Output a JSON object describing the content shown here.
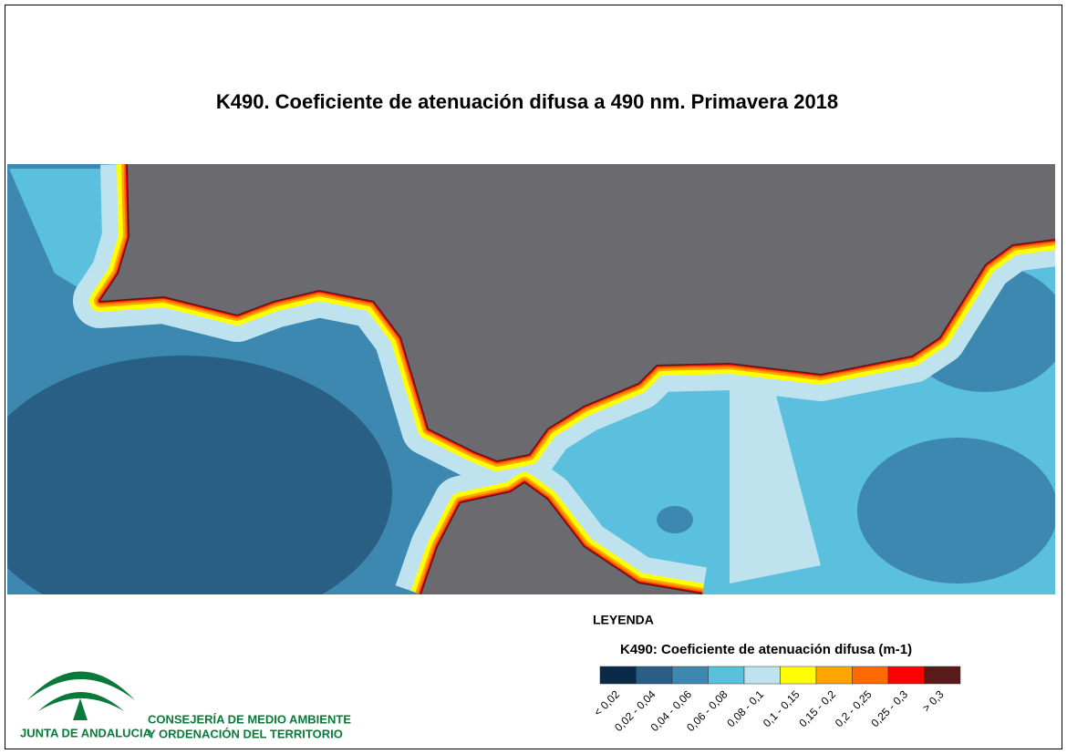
{
  "title": "K490. Coeficiente de atenuación difusa a 490 nm. Primavera 2018",
  "legend": {
    "heading": "LEYENDA",
    "title": "K490: Coeficiente de atenuación difusa (m-1)",
    "classes": [
      {
        "label": "< 0,02",
        "color": "#0b2a48"
      },
      {
        "label": "0,02 - 0,04",
        "color": "#2a5f85"
      },
      {
        "label": "0,04 - 0,06",
        "color": "#3d88b0"
      },
      {
        "label": "0,06 - 0,08",
        "color": "#5bc0de"
      },
      {
        "label": "0,08 - 0,1",
        "color": "#bfe3ee"
      },
      {
        "label": "0,1 - 0,15",
        "color": "#ffff00"
      },
      {
        "label": "0,15 - 0,2",
        "color": "#ffa500"
      },
      {
        "label": "0,2 - 0,25",
        "color": "#ff6a00"
      },
      {
        "label": "0,25 - 0,3",
        "color": "#ff0000"
      },
      {
        "label": "> 0,3",
        "color": "#5a1a1a"
      }
    ]
  },
  "logo": {
    "name": "JUNTA DE ANDALUCIA",
    "department": [
      "CONSEJERÍA DE MEDIO AMBIENTE",
      "Y ORDENACIÓN DEL TERRITORIO"
    ]
  }
}
